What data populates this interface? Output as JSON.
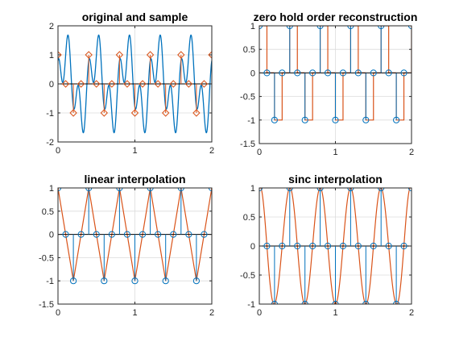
{
  "chart_data": [
    {
      "type": "line",
      "title": "original and sample",
      "xlim": [
        0,
        2
      ],
      "ylim": [
        -2,
        2
      ],
      "xticks": [
        "0",
        "1",
        "2"
      ],
      "yticks": [
        "-2",
        "-1",
        "0",
        "1",
        "2"
      ],
      "grid": true,
      "colors": {
        "original": "#0072BD",
        "samples": "#D95319"
      },
      "continuous": {
        "expr": "sin(2*pi*2.5*t) + 0.8*cos(2*pi*7.5*t)",
        "x_range": [
          0,
          2
        ]
      },
      "stem_x": [
        0,
        0.1,
        0.2,
        0.3,
        0.4,
        0.5,
        0.6,
        0.7,
        0.8,
        0.9,
        1.0,
        1.1,
        1.2,
        1.3,
        1.4,
        1.5,
        1.6,
        1.7,
        1.8,
        1.9,
        2.0
      ],
      "stem_y": [
        1,
        0,
        -1,
        0,
        1,
        0,
        -1,
        0,
        1,
        0,
        -1,
        0,
        1,
        0,
        -1,
        0,
        1,
        0,
        -1,
        0,
        1
      ]
    },
    {
      "type": "line",
      "title": "zero hold order reconstruction",
      "xlim": [
        0,
        2
      ],
      "ylim": [
        -1.5,
        1
      ],
      "xticks": [
        "0",
        "1",
        "2"
      ],
      "yticks": [
        "-1.5",
        "-1",
        "-0.5",
        "0",
        "0.5",
        "1"
      ],
      "grid": true,
      "colors": {
        "samples": "#0072BD",
        "reconstruction": "#D95319"
      },
      "reconstruction": "zoh",
      "stem_x": [
        0,
        0.1,
        0.2,
        0.3,
        0.4,
        0.5,
        0.6,
        0.7,
        0.8,
        0.9,
        1.0,
        1.1,
        1.2,
        1.3,
        1.4,
        1.5,
        1.6,
        1.7,
        1.8,
        1.9,
        2.0
      ],
      "stem_y": [
        1,
        0,
        -1,
        0,
        1,
        0,
        -1,
        0,
        1,
        0,
        -1,
        0,
        1,
        0,
        -1,
        0,
        1,
        0,
        -1,
        0,
        1
      ]
    },
    {
      "type": "line",
      "title": "linear interpolation",
      "xlim": [
        0,
        2
      ],
      "ylim": [
        -1.5,
        1
      ],
      "xticks": [
        "0",
        "1",
        "2"
      ],
      "yticks": [
        "-1.5",
        "-1",
        "-0.5",
        "0",
        "0.5",
        "1"
      ],
      "grid": true,
      "colors": {
        "samples": "#0072BD",
        "reconstruction": "#D95319"
      },
      "reconstruction": "linear",
      "stem_x": [
        0,
        0.1,
        0.2,
        0.3,
        0.4,
        0.5,
        0.6,
        0.7,
        0.8,
        0.9,
        1.0,
        1.1,
        1.2,
        1.3,
        1.4,
        1.5,
        1.6,
        1.7,
        1.8,
        1.9,
        2.0
      ],
      "stem_y": [
        1,
        0,
        -1,
        0,
        1,
        0,
        -1,
        0,
        1,
        0,
        -1,
        0,
        1,
        0,
        -1,
        0,
        1,
        0,
        -1,
        0,
        1
      ]
    },
    {
      "type": "line",
      "title": "sinc interpolation",
      "xlim": [
        0,
        2
      ],
      "ylim": [
        -1,
        1
      ],
      "xticks": [
        "0",
        "1",
        "2"
      ],
      "yticks": [
        "-1",
        "-0.5",
        "0",
        "0.5",
        "1"
      ],
      "grid": true,
      "colors": {
        "samples": "#0072BD",
        "reconstruction": "#D95319"
      },
      "reconstruction": "sinc",
      "stem_x": [
        0,
        0.1,
        0.2,
        0.3,
        0.4,
        0.5,
        0.6,
        0.7,
        0.8,
        0.9,
        1.0,
        1.1,
        1.2,
        1.3,
        1.4,
        1.5,
        1.6,
        1.7,
        1.8,
        1.9,
        2.0
      ],
      "stem_y": [
        1,
        0,
        -1,
        0,
        1,
        0,
        -1,
        0,
        1,
        0,
        -1,
        0,
        1,
        0,
        -1,
        0,
        1,
        0,
        -1,
        0,
        1
      ]
    }
  ]
}
